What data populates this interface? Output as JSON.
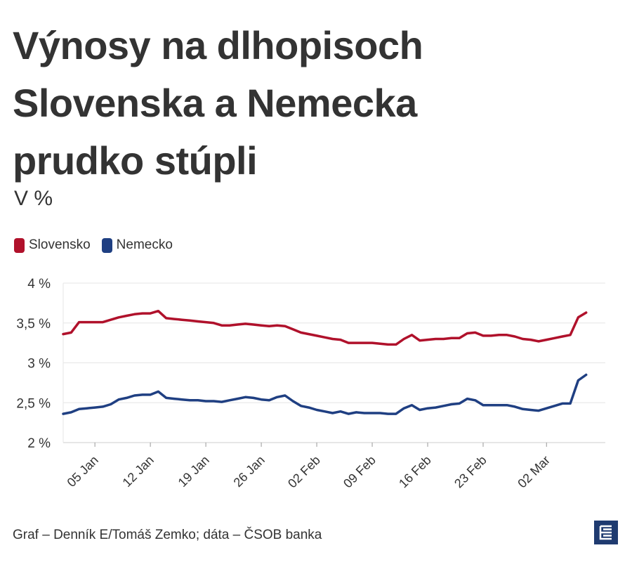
{
  "title": "Výnosy na dlhopisoch Slovenska a Nemecka prudko stúpli",
  "subtitle": "V %",
  "source": "Graf – Denník E/Tomáš Zemko; dáta – ČSOB banka",
  "logo": "E",
  "colors": {
    "slovensko": "#b0112b",
    "nemecko": "#1f3f82",
    "grid": "#e6e6e6",
    "text": "#333333"
  },
  "chart_data": {
    "type": "line",
    "title": "Výnosy na dlhopisoch Slovenska a Nemecka prudko stúpli",
    "subtitle": "V %",
    "xlabel": "",
    "ylabel": "",
    "ylim": [
      2,
      4
    ],
    "yticks": [
      2,
      2.5,
      3,
      3.5,
      4
    ],
    "ytick_labels": [
      "2 %",
      "2,5 %",
      "3 %",
      "3,5 %",
      "4 %"
    ],
    "xlim": [
      "2024-01-01",
      "2024-03-06"
    ],
    "xticks": [
      "2024-01-05",
      "2024-01-12",
      "2024-01-19",
      "2024-01-26",
      "2024-02-02",
      "2024-02-09",
      "2024-02-16",
      "2024-02-23",
      "2024-03-02"
    ],
    "xtick_labels": [
      "05 Jan",
      "12 Jan",
      "19 Jan",
      "26 Jan",
      "02 Feb",
      "09 Feb",
      "16 Feb",
      "23 Feb",
      "02 Mar"
    ],
    "grid": true,
    "legend": "top-left",
    "series": [
      {
        "name": "Slovensko",
        "color": "#b0112b",
        "points": [
          [
            "2024-01-01",
            3.36
          ],
          [
            "2024-01-02",
            3.38
          ],
          [
            "2024-01-03",
            3.51
          ],
          [
            "2024-01-04",
            3.51
          ],
          [
            "2024-01-05",
            3.51
          ],
          [
            "2024-01-06",
            3.51
          ],
          [
            "2024-01-07",
            3.54
          ],
          [
            "2024-01-08",
            3.57
          ],
          [
            "2024-01-09",
            3.59
          ],
          [
            "2024-01-10",
            3.61
          ],
          [
            "2024-01-11",
            3.62
          ],
          [
            "2024-01-12",
            3.62
          ],
          [
            "2024-01-13",
            3.65
          ],
          [
            "2024-01-14",
            3.56
          ],
          [
            "2024-01-15",
            3.55
          ],
          [
            "2024-01-16",
            3.54
          ],
          [
            "2024-01-17",
            3.53
          ],
          [
            "2024-01-18",
            3.52
          ],
          [
            "2024-01-19",
            3.51
          ],
          [
            "2024-01-20",
            3.5
          ],
          [
            "2024-01-21",
            3.47
          ],
          [
            "2024-01-22",
            3.47
          ],
          [
            "2024-01-23",
            3.48
          ],
          [
            "2024-01-24",
            3.49
          ],
          [
            "2024-01-25",
            3.48
          ],
          [
            "2024-01-26",
            3.47
          ],
          [
            "2024-01-27",
            3.46
          ],
          [
            "2024-01-28",
            3.47
          ],
          [
            "2024-01-29",
            3.46
          ],
          [
            "2024-01-30",
            3.42
          ],
          [
            "2024-01-31",
            3.38
          ],
          [
            "2024-02-01",
            3.36
          ],
          [
            "2024-02-02",
            3.34
          ],
          [
            "2024-02-03",
            3.32
          ],
          [
            "2024-02-04",
            3.3
          ],
          [
            "2024-02-05",
            3.29
          ],
          [
            "2024-02-06",
            3.25
          ],
          [
            "2024-02-07",
            3.25
          ],
          [
            "2024-02-08",
            3.25
          ],
          [
            "2024-02-09",
            3.25
          ],
          [
            "2024-02-10",
            3.24
          ],
          [
            "2024-02-11",
            3.23
          ],
          [
            "2024-02-12",
            3.23
          ],
          [
            "2024-02-13",
            3.3
          ],
          [
            "2024-02-14",
            3.35
          ],
          [
            "2024-02-15",
            3.28
          ],
          [
            "2024-02-16",
            3.29
          ],
          [
            "2024-02-17",
            3.3
          ],
          [
            "2024-02-18",
            3.3
          ],
          [
            "2024-02-19",
            3.31
          ],
          [
            "2024-02-20",
            3.31
          ],
          [
            "2024-02-21",
            3.37
          ],
          [
            "2024-02-22",
            3.38
          ],
          [
            "2024-02-23",
            3.34
          ],
          [
            "2024-02-24",
            3.34
          ],
          [
            "2024-02-25",
            3.35
          ],
          [
            "2024-02-26",
            3.35
          ],
          [
            "2024-02-27",
            3.33
          ],
          [
            "2024-02-28",
            3.3
          ],
          [
            "2024-02-29",
            3.29
          ],
          [
            "2024-03-01",
            3.27
          ],
          [
            "2024-03-02",
            3.29
          ],
          [
            "2024-03-03",
            3.31
          ],
          [
            "2024-03-04",
            3.33
          ],
          [
            "2024-03-05",
            3.35
          ],
          [
            "2024-03-06",
            3.57
          ],
          [
            "2024-03-07",
            3.63
          ]
        ]
      },
      {
        "name": "Nemecko",
        "color": "#1f3f82",
        "points": [
          [
            "2024-01-01",
            2.36
          ],
          [
            "2024-01-02",
            2.38
          ],
          [
            "2024-01-03",
            2.42
          ],
          [
            "2024-01-04",
            2.43
          ],
          [
            "2024-01-05",
            2.44
          ],
          [
            "2024-01-06",
            2.45
          ],
          [
            "2024-01-07",
            2.48
          ],
          [
            "2024-01-08",
            2.54
          ],
          [
            "2024-01-09",
            2.56
          ],
          [
            "2024-01-10",
            2.59
          ],
          [
            "2024-01-11",
            2.6
          ],
          [
            "2024-01-12",
            2.6
          ],
          [
            "2024-01-13",
            2.64
          ],
          [
            "2024-01-14",
            2.56
          ],
          [
            "2024-01-15",
            2.55
          ],
          [
            "2024-01-16",
            2.54
          ],
          [
            "2024-01-17",
            2.53
          ],
          [
            "2024-01-18",
            2.53
          ],
          [
            "2024-01-19",
            2.52
          ],
          [
            "2024-01-20",
            2.52
          ],
          [
            "2024-01-21",
            2.51
          ],
          [
            "2024-01-22",
            2.53
          ],
          [
            "2024-01-23",
            2.55
          ],
          [
            "2024-01-24",
            2.57
          ],
          [
            "2024-01-25",
            2.56
          ],
          [
            "2024-01-26",
            2.54
          ],
          [
            "2024-01-27",
            2.53
          ],
          [
            "2024-01-28",
            2.57
          ],
          [
            "2024-01-29",
            2.59
          ],
          [
            "2024-01-30",
            2.52
          ],
          [
            "2024-01-31",
            2.46
          ],
          [
            "2024-02-01",
            2.44
          ],
          [
            "2024-02-02",
            2.41
          ],
          [
            "2024-02-03",
            2.39
          ],
          [
            "2024-02-04",
            2.37
          ],
          [
            "2024-02-05",
            2.39
          ],
          [
            "2024-02-06",
            2.36
          ],
          [
            "2024-02-07",
            2.38
          ],
          [
            "2024-02-08",
            2.37
          ],
          [
            "2024-02-09",
            2.37
          ],
          [
            "2024-02-10",
            2.37
          ],
          [
            "2024-02-11",
            2.36
          ],
          [
            "2024-02-12",
            2.36
          ],
          [
            "2024-02-13",
            2.43
          ],
          [
            "2024-02-14",
            2.47
          ],
          [
            "2024-02-15",
            2.41
          ],
          [
            "2024-02-16",
            2.43
          ],
          [
            "2024-02-17",
            2.44
          ],
          [
            "2024-02-18",
            2.46
          ],
          [
            "2024-02-19",
            2.48
          ],
          [
            "2024-02-20",
            2.49
          ],
          [
            "2024-02-21",
            2.55
          ],
          [
            "2024-02-22",
            2.53
          ],
          [
            "2024-02-23",
            2.47
          ],
          [
            "2024-02-24",
            2.47
          ],
          [
            "2024-02-25",
            2.47
          ],
          [
            "2024-02-26",
            2.47
          ],
          [
            "2024-02-27",
            2.45
          ],
          [
            "2024-02-28",
            2.42
          ],
          [
            "2024-02-29",
            2.41
          ],
          [
            "2024-03-01",
            2.4
          ],
          [
            "2024-03-02",
            2.43
          ],
          [
            "2024-03-03",
            2.46
          ],
          [
            "2024-03-04",
            2.49
          ],
          [
            "2024-03-05",
            2.49
          ],
          [
            "2024-03-06",
            2.78
          ],
          [
            "2024-03-07",
            2.85
          ]
        ]
      }
    ]
  }
}
